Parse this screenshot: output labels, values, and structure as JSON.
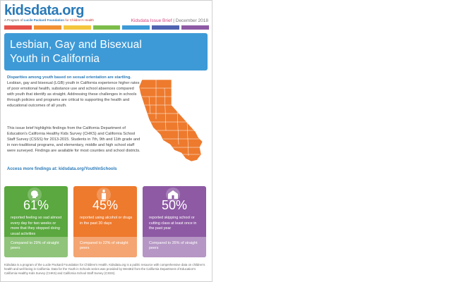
{
  "header": {
    "logo": "kidsdata.org",
    "tagline_prefix": "A Program of",
    "tagline_foundation": "Lucile Packard Foundation",
    "tagline_health": "for Children's Health",
    "brief_label": "Kidsdata Issue Brief",
    "brief_separator": "|",
    "brief_date": "December 2018"
  },
  "stripe_colors": [
    "#e5534b",
    "#f29133",
    "#f4c63d",
    "#7cbd4a",
    "#3e9ad6",
    "#4f63b0",
    "#8e5aa4"
  ],
  "title": {
    "line1": "Lesbian, Gay and Bisexual",
    "line2": "Youth in California"
  },
  "intro": {
    "lead": "Disparities among youth based on sexual orientation are startling.",
    "body": " Lesbian, gay and bisexual (LGB) youth in California experience higher rates of poor emotional health, substance use and school absences compared with youth that identify as straight. Addressing these challenges in schools through policies and programs are critical to supporting the health and educational outcomes of all youth."
  },
  "paragraph2": "This issue brief highlights findings from the California Department of Education's California Healthy Kids Survey (CHKS) and California School Staff Survey (CSSS) for 2013-2015. Students in 7th, 9th and 11th grade and in non-traditional programs, and elementary, middle and high school staff were surveyed. Findings are available for most counties and school districts.",
  "access_link": "Access more findings at: kidsdata.org/YouthInSchools",
  "map_icon": "california-map-icon",
  "stats": [
    {
      "icon": "head-silhouette-icon",
      "percent": "61%",
      "description": "reported feeling so sad almost every day for two weeks or more that they stopped doing usual activities",
      "comparison": "Compared to 29% of straight peers",
      "color": "#5aa83f"
    },
    {
      "icon": "bottle-icon",
      "percent": "45%",
      "description": "reported using alcohol or drugs in the past 30 days",
      "comparison": "Compared to 22% of straight peers",
      "color": "#ee7a2d"
    },
    {
      "icon": "school-building-icon",
      "percent": "50%",
      "description": "reported skipping school or cutting class at least once in the past year",
      "comparison": "Compared to 35% of straight peers",
      "color": "#8e5aa4"
    }
  ],
  "footer": "Kidsdata is a program of the Lucile Packard Foundation for Children's Health. Kidsdata.org is a public resource with comprehensive data on children's health and well being in California. Data for the Youth in Schools series was provided by WestEd from the California Department of Education's California Healthy Kids Survey (CHKS) and California School Staff Survey (CSSS)."
}
